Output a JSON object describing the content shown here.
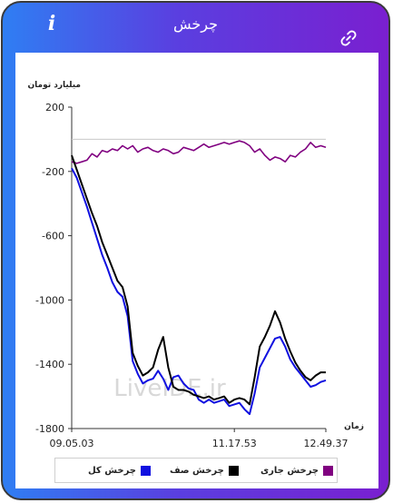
{
  "header": {
    "title": "چرخش",
    "info_label": "i"
  },
  "colors": {
    "total": "#1010e0",
    "queue": "#000000",
    "current": "#800080",
    "header_from": "#2f7ef3",
    "header_to": "#7a1fd0"
  },
  "watermark": "LiveIDE.ir",
  "chart_data": {
    "type": "line",
    "ylabel": "میلیارد تومان",
    "xlabel": "زمان",
    "ylim": [
      -1800,
      200
    ],
    "yticks": [
      200,
      -200,
      -600,
      -1000,
      -1400,
      -1800
    ],
    "xtick_labels": [
      "09.05.03",
      "11.17.53",
      "12.49.37"
    ],
    "legend_position": "bottom",
    "grid": false,
    "reference_line": 0,
    "series": [
      {
        "name": "چرخش کل",
        "color_key": "total",
        "points": [
          [
            0,
            -180
          ],
          [
            1,
            -240
          ],
          [
            2,
            -330
          ],
          [
            3,
            -420
          ],
          [
            4,
            -520
          ],
          [
            5,
            -620
          ],
          [
            6,
            -720
          ],
          [
            7,
            -800
          ],
          [
            8,
            -890
          ],
          [
            9,
            -950
          ],
          [
            10,
            -980
          ],
          [
            11,
            -1100
          ],
          [
            12,
            -1380
          ],
          [
            13,
            -1460
          ],
          [
            14,
            -1520
          ],
          [
            15,
            -1500
          ],
          [
            16,
            -1490
          ],
          [
            17,
            -1440
          ],
          [
            18,
            -1490
          ],
          [
            19,
            -1560
          ],
          [
            20,
            -1480
          ],
          [
            21,
            -1470
          ],
          [
            22,
            -1520
          ],
          [
            23,
            -1550
          ],
          [
            24,
            -1560
          ],
          [
            25,
            -1620
          ],
          [
            26,
            -1640
          ],
          [
            27,
            -1620
          ],
          [
            28,
            -1640
          ],
          [
            29,
            -1630
          ],
          [
            30,
            -1620
          ],
          [
            31,
            -1660
          ],
          [
            32,
            -1650
          ],
          [
            33,
            -1640
          ],
          [
            34,
            -1680
          ],
          [
            35,
            -1710
          ],
          [
            36,
            -1580
          ],
          [
            37,
            -1420
          ],
          [
            38,
            -1360
          ],
          [
            39,
            -1300
          ],
          [
            40,
            -1240
          ],
          [
            41,
            -1230
          ],
          [
            42,
            -1290
          ],
          [
            43,
            -1370
          ],
          [
            44,
            -1420
          ],
          [
            45,
            -1460
          ],
          [
            46,
            -1500
          ],
          [
            47,
            -1540
          ],
          [
            48,
            -1530
          ],
          [
            49,
            -1510
          ],
          [
            50,
            -1500
          ]
        ]
      },
      {
        "name": "چرخش صف",
        "color_key": "queue",
        "points": [
          [
            0,
            -100
          ],
          [
            1,
            -190
          ],
          [
            2,
            -280
          ],
          [
            3,
            -370
          ],
          [
            4,
            -460
          ],
          [
            5,
            -540
          ],
          [
            6,
            -640
          ],
          [
            7,
            -720
          ],
          [
            8,
            -800
          ],
          [
            9,
            -880
          ],
          [
            10,
            -920
          ],
          [
            11,
            -1040
          ],
          [
            12,
            -1330
          ],
          [
            13,
            -1410
          ],
          [
            14,
            -1470
          ],
          [
            15,
            -1450
          ],
          [
            16,
            -1420
          ],
          [
            17,
            -1310
          ],
          [
            18,
            -1230
          ],
          [
            19,
            -1420
          ],
          [
            20,
            -1540
          ],
          [
            21,
            -1560
          ],
          [
            22,
            -1560
          ],
          [
            23,
            -1570
          ],
          [
            24,
            -1590
          ],
          [
            25,
            -1600
          ],
          [
            26,
            -1610
          ],
          [
            27,
            -1600
          ],
          [
            28,
            -1620
          ],
          [
            29,
            -1610
          ],
          [
            30,
            -1600
          ],
          [
            31,
            -1640
          ],
          [
            32,
            -1620
          ],
          [
            33,
            -1610
          ],
          [
            34,
            -1620
          ],
          [
            35,
            -1650
          ],
          [
            36,
            -1480
          ],
          [
            37,
            -1290
          ],
          [
            38,
            -1230
          ],
          [
            39,
            -1160
          ],
          [
            40,
            -1070
          ],
          [
            41,
            -1140
          ],
          [
            42,
            -1240
          ],
          [
            43,
            -1320
          ],
          [
            44,
            -1390
          ],
          [
            45,
            -1440
          ],
          [
            46,
            -1480
          ],
          [
            47,
            -1500
          ],
          [
            48,
            -1470
          ],
          [
            49,
            -1450
          ],
          [
            50,
            -1450
          ]
        ]
      },
      {
        "name": "چرخش جاری",
        "color_key": "current",
        "points": [
          [
            0,
            -140
          ],
          [
            1,
            -150
          ],
          [
            2,
            -140
          ],
          [
            3,
            -130
          ],
          [
            4,
            -90
          ],
          [
            5,
            -110
          ],
          [
            6,
            -70
          ],
          [
            7,
            -80
          ],
          [
            8,
            -60
          ],
          [
            9,
            -70
          ],
          [
            10,
            -40
          ],
          [
            11,
            -60
          ],
          [
            12,
            -40
          ],
          [
            13,
            -80
          ],
          [
            14,
            -60
          ],
          [
            15,
            -50
          ],
          [
            16,
            -70
          ],
          [
            17,
            -80
          ],
          [
            18,
            -60
          ],
          [
            19,
            -70
          ],
          [
            20,
            -90
          ],
          [
            21,
            -80
          ],
          [
            22,
            -50
          ],
          [
            23,
            -60
          ],
          [
            24,
            -70
          ],
          [
            25,
            -50
          ],
          [
            26,
            -30
          ],
          [
            27,
            -50
          ],
          [
            28,
            -40
          ],
          [
            29,
            -30
          ],
          [
            30,
            -20
          ],
          [
            31,
            -30
          ],
          [
            32,
            -20
          ],
          [
            33,
            -10
          ],
          [
            34,
            -20
          ],
          [
            35,
            -40
          ],
          [
            36,
            -80
          ],
          [
            37,
            -60
          ],
          [
            38,
            -100
          ],
          [
            39,
            -130
          ],
          [
            40,
            -110
          ],
          [
            41,
            -120
          ],
          [
            42,
            -140
          ],
          [
            43,
            -100
          ],
          [
            44,
            -110
          ],
          [
            45,
            -80
          ],
          [
            46,
            -60
          ],
          [
            47,
            -20
          ],
          [
            48,
            -50
          ],
          [
            49,
            -40
          ],
          [
            50,
            -50
          ]
        ]
      }
    ]
  }
}
